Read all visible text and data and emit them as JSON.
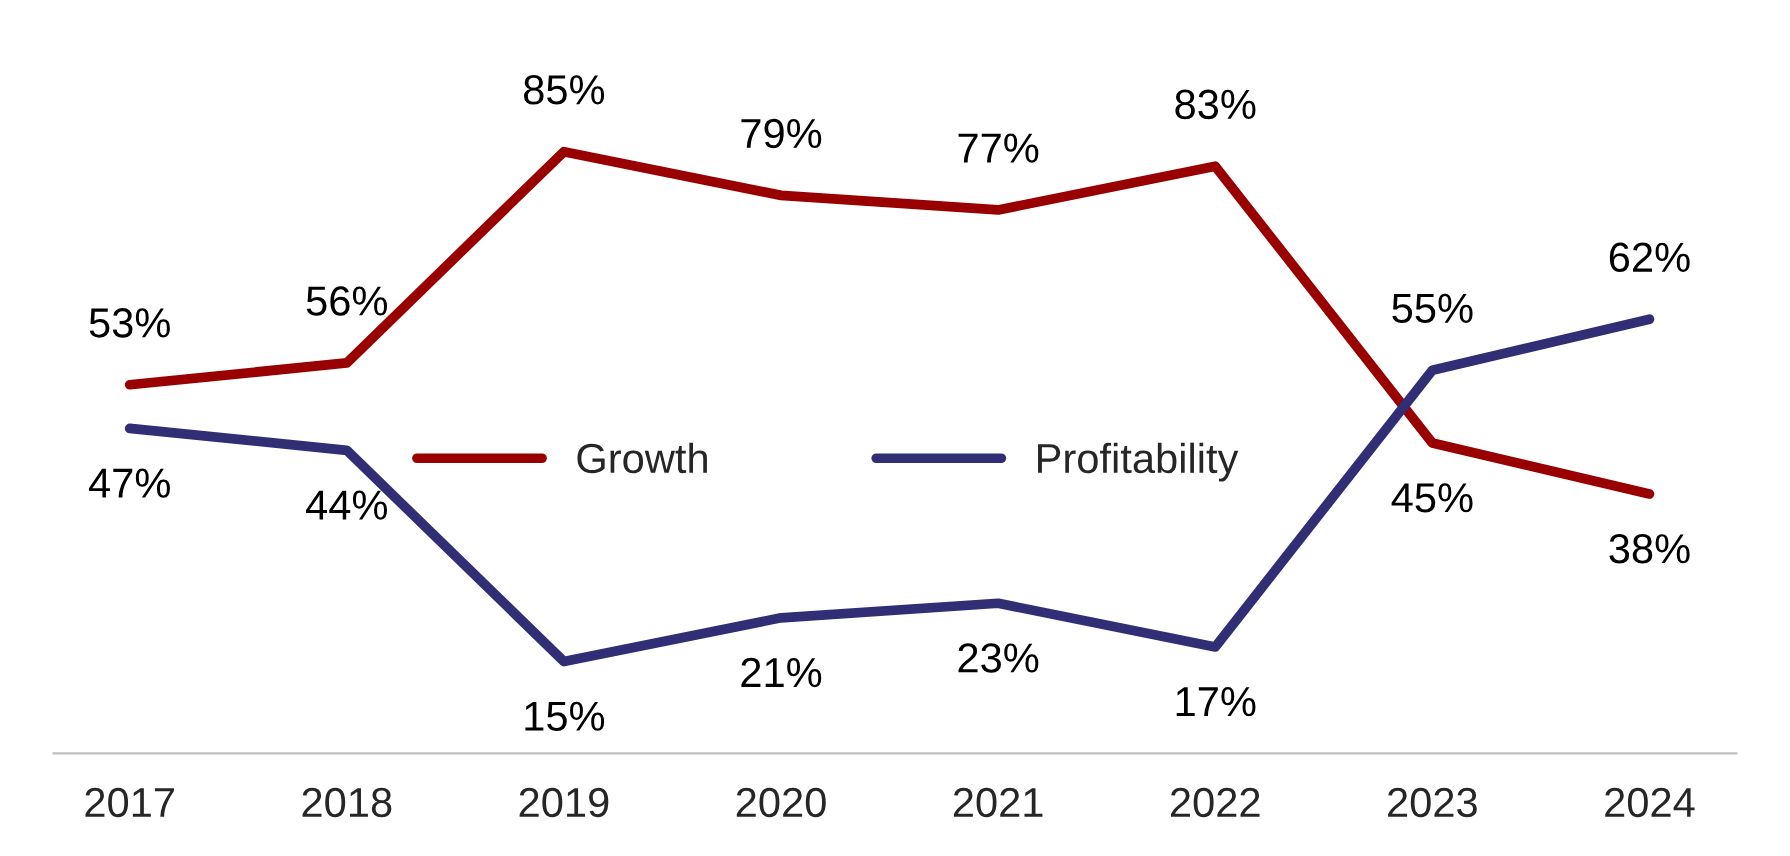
{
  "chart_data": {
    "type": "line",
    "categories": [
      "2017",
      "2018",
      "2019",
      "2020",
      "2021",
      "2022",
      "2023",
      "2024"
    ],
    "series": [
      {
        "name": "Growth",
        "color": "#990000",
        "values": [
          53,
          56,
          85,
          79,
          77,
          83,
          45,
          38
        ],
        "value_labels": [
          "53%",
          "56%",
          "85%",
          "79%",
          "77%",
          "83%",
          "45%",
          "38%"
        ]
      },
      {
        "name": "Profitability",
        "color": "#312e76",
        "values": [
          47,
          44,
          15,
          21,
          23,
          17,
          55,
          62
        ],
        "value_labels": [
          "47%",
          "44%",
          "15%",
          "21%",
          "23%",
          "17%",
          "55%",
          "62%"
        ]
      }
    ],
    "legend": "center",
    "grid": false,
    "marker": "none",
    "line_style": "solid"
  }
}
